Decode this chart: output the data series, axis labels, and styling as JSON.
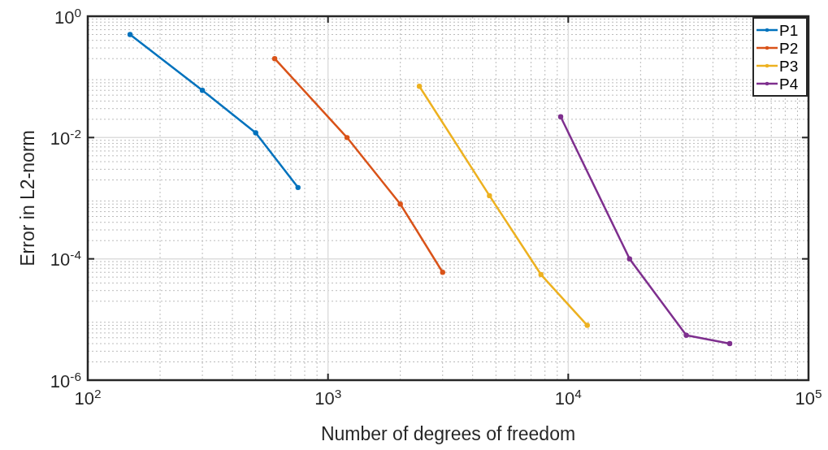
{
  "chart_data": {
    "type": "line",
    "xlabel": "Number of degrees of freedom",
    "ylabel": "Error in L2-norm",
    "log": "xy",
    "grid": true,
    "legend": "top right",
    "marker": "circle",
    "line_style": "solid",
    "xlim": [
      100,
      100000
    ],
    "ylim": [
      1e-06,
      1
    ],
    "xticks": [
      {
        "value": 100,
        "label": "10$^{2}$"
      },
      {
        "value": 1000,
        "label": "10$^{3}$"
      },
      {
        "value": 10000,
        "label": "10$^{4}$"
      },
      {
        "value": 100000,
        "label": "10$^{5}$"
      }
    ],
    "yticks": [
      {
        "value": 1e-06,
        "label": "10$^{-6}$"
      },
      {
        "value": 0.0001,
        "label": "10$^{-4}$"
      },
      {
        "value": 0.01,
        "label": "10$^{-2}$"
      },
      {
        "value": 1,
        "label": "10$^{0}$"
      }
    ],
    "series": [
      {
        "name": "P1",
        "color": "#0072bd",
        "x": [
          150,
          300,
          500,
          750
        ],
        "values": [
          0.5,
          0.06,
          0.012,
          0.0015
        ]
      },
      {
        "name": "P2",
        "color": "#d95319",
        "x": [
          600,
          1200,
          2000,
          3000
        ],
        "values": [
          0.2,
          0.01,
          0.0008,
          6e-05
        ]
      },
      {
        "name": "P3",
        "color": "#edb120",
        "x": [
          2400,
          4700,
          7700,
          12000
        ],
        "values": [
          0.07,
          0.0011,
          5.5e-05,
          8e-06
        ]
      },
      {
        "name": "P4",
        "color": "#7e2f8e",
        "x": [
          9300,
          18000,
          31000,
          47000
        ],
        "values": [
          0.022,
          0.0001,
          5.5e-06,
          4e-06
        ]
      }
    ]
  }
}
